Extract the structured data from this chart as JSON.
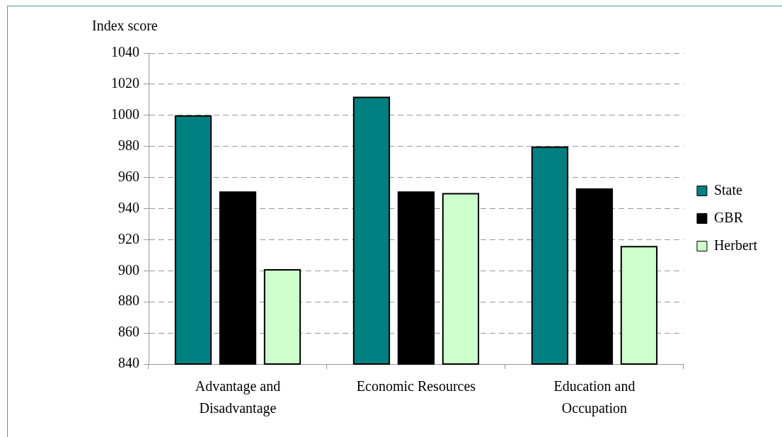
{
  "chart_data": {
    "type": "bar",
    "ylabel": "Index score",
    "categories": [
      "Advantage and Disadvantage",
      "Economic Resources",
      "Education and Occupation"
    ],
    "series": [
      {
        "name": "State",
        "color": "#008080",
        "values": [
          1000,
          1012,
          980
        ]
      },
      {
        "name": "GBR",
        "color": "#000000",
        "values": [
          951,
          951,
          953
        ]
      },
      {
        "name": "Herbert",
        "color": "#ccffcc",
        "values": [
          901,
          950,
          916
        ]
      }
    ],
    "ylim": [
      840,
      1040
    ],
    "yticks": [
      840,
      860,
      880,
      900,
      920,
      940,
      960,
      980,
      1000,
      1020,
      1040
    ],
    "grid": "y",
    "legend": "right"
  }
}
